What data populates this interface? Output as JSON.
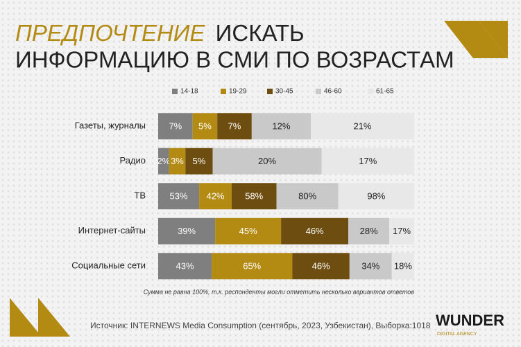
{
  "chart_data": {
    "type": "bar",
    "title_highlight": "ПРЕДПОЧТЕНИЕ",
    "title_rest": "ИСКАТЬ",
    "title_line2": "ИНФОРМАЦИЮ В СМИ ПО ВОЗРАСТАМ",
    "categories": [
      "Газеты, журналы",
      "Радио",
      "ТВ",
      "Интернет-сайты",
      "Социальные сети"
    ],
    "series": [
      {
        "name": "14-18",
        "color": "#7f7f7f",
        "values": [
          7,
          2,
          53,
          39,
          43
        ],
        "value_labels": [
          "7%",
          "2%",
          "53%",
          "39%",
          "43%"
        ]
      },
      {
        "name": "19-29",
        "color": "#b38a12",
        "values": [
          5,
          3,
          42,
          45,
          65
        ],
        "value_labels": [
          "5%",
          "3%",
          "42%",
          "45%",
          "65%"
        ]
      },
      {
        "name": "30-45",
        "color": "#6e4d10",
        "values": [
          7,
          5,
          58,
          46,
          46
        ],
        "value_labels": [
          "7%",
          "5%",
          "58%",
          "46%",
          "46%"
        ]
      },
      {
        "name": "46-60",
        "color": "#c9c9c9",
        "values": [
          12,
          20,
          80,
          28,
          34
        ],
        "value_labels": [
          "12%",
          "20%",
          "80%",
          "28%",
          "34%"
        ]
      },
      {
        "name": "61-65",
        "color": "#e8e8e8",
        "values": [
          21,
          17,
          98,
          17,
          18
        ],
        "value_labels": [
          "21%",
          "17%",
          "98%",
          "17%",
          "18%"
        ]
      }
    ],
    "note": "Сумма не равна 100%, т.к. респонденты могли отметить несколько вариантов ответов",
    "source": "Источник: INTERNEWS Media Consumption (сентябрь, 2023, Узбекистан), Выборка:1018",
    "logo": "WUNDER",
    "logo_sub": "DIGITAL AGENCY"
  }
}
